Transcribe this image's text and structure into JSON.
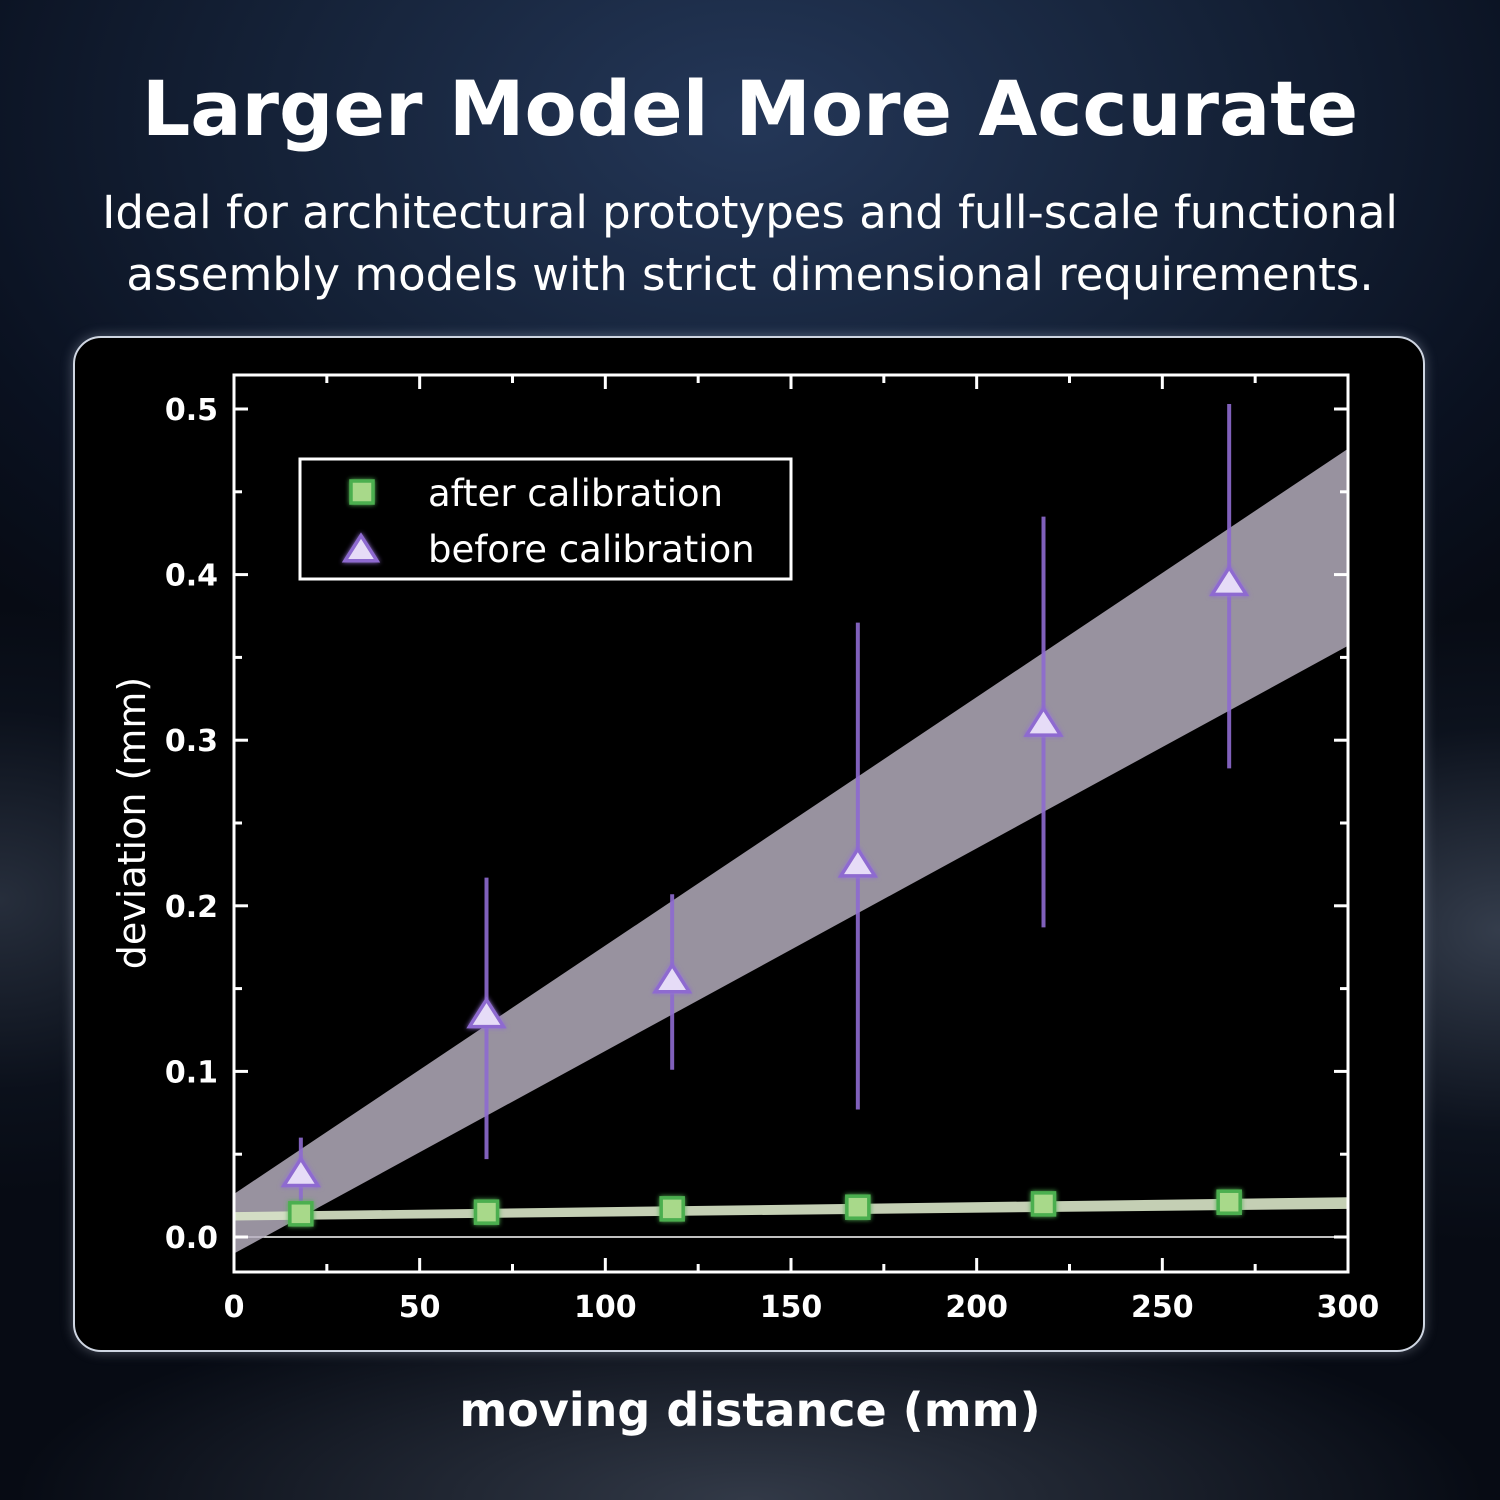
{
  "header": {
    "title": "Larger Model More Accurate",
    "subtitle_line1": "Ideal for architectural prototypes and full-scale functional",
    "subtitle_line2": "assembly models with strict dimensional requirements."
  },
  "colors": {
    "after": "#4caf50",
    "after_fill": "#a8d98a",
    "before": "#8e6bd0",
    "before_fill": "#e6dcf7",
    "band_before": "#b9b2c2",
    "band_after": "#d9e6c8"
  },
  "chart_data": {
    "type": "scatter",
    "xlabel": "moving distance (mm)",
    "ylabel": "deviation (mm)",
    "xlim": [
      0,
      300
    ],
    "ylim": [
      0,
      0.5
    ],
    "x_ticks": [
      0,
      50,
      100,
      150,
      200,
      250,
      300
    ],
    "x_tick_labels": [
      "0",
      "50",
      "100",
      "150",
      "200",
      "250",
      "300"
    ],
    "y_ticks": [
      0,
      0.1,
      0.2,
      0.3,
      0.4,
      0.5
    ],
    "y_tick_labels": [
      "0.0",
      "0.1",
      "0.2",
      "0.3",
      "0.4",
      "0.5"
    ],
    "grid": false,
    "legend_position": "top-left",
    "series": [
      {
        "name": "after calibration",
        "marker": "square",
        "x": [
          18,
          68,
          118,
          168,
          218,
          268
        ],
        "y": [
          0.014,
          0.015,
          0.017,
          0.018,
          0.02,
          0.021
        ],
        "error_low": [
          0.006,
          0.006,
          0.006,
          0.006,
          0.006,
          0.006
        ],
        "error_high": [
          0.006,
          0.006,
          0.006,
          0.006,
          0.006,
          0.006
        ],
        "fit_band": {
          "x": [
            0,
            300
          ],
          "lower": [
            0.01,
            0.017
          ],
          "upper": [
            0.015,
            0.024
          ]
        }
      },
      {
        "name": "before calibration",
        "marker": "triangle",
        "x": [
          18,
          68,
          118,
          168,
          218,
          268
        ],
        "y": [
          0.038,
          0.134,
          0.155,
          0.225,
          0.31,
          0.395
        ],
        "error_low": [
          0.018,
          0.087,
          0.054,
          0.148,
          0.123,
          0.112
        ],
        "error_high": [
          0.022,
          0.083,
          0.052,
          0.146,
          0.125,
          0.108
        ],
        "fit_band": {
          "x": [
            0,
            300
          ],
          "lower": [
            -0.01,
            0.357
          ],
          "upper": [
            0.026,
            0.476
          ]
        }
      }
    ]
  }
}
